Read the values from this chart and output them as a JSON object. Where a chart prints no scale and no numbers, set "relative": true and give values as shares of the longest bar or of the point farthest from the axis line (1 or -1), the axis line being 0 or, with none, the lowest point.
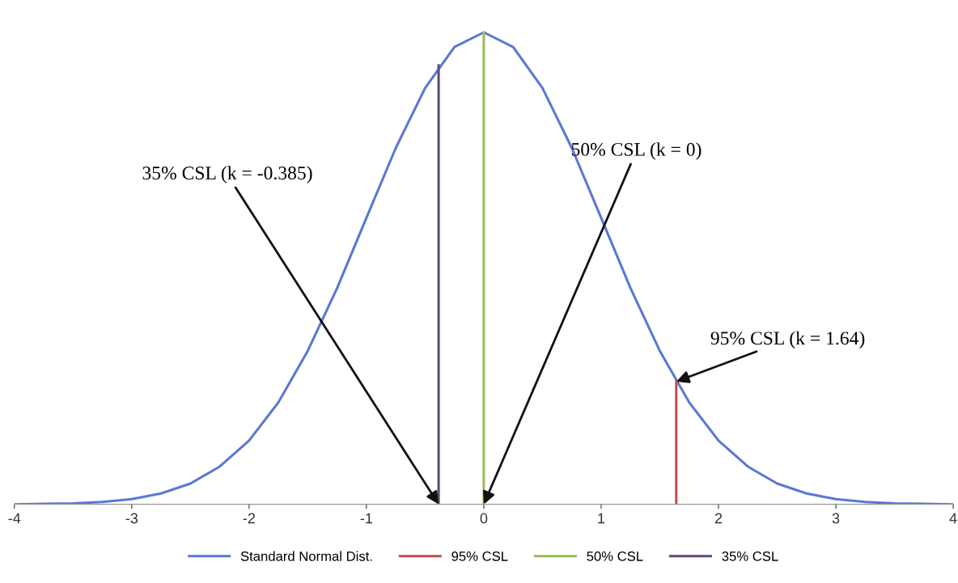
{
  "chart_data": {
    "type": "line",
    "relative": true,
    "xlim": [
      -4,
      4
    ],
    "xticks": [
      -4,
      -3,
      -2,
      -1,
      0,
      1,
      2,
      3,
      4
    ],
    "grid": false,
    "legend": "bottom",
    "marker": "none",
    "line_style": "solid",
    "series": [
      {
        "name": "Standard Normal Dist.",
        "color": "#5a78d2",
        "x": [
          -4,
          -3.75,
          -3.5,
          -3.25,
          -3,
          -2.75,
          -2.5,
          -2.25,
          -2,
          -1.75,
          -1.5,
          -1.25,
          -1,
          -0.75,
          -0.5,
          -0.25,
          0,
          0.25,
          0.5,
          0.75,
          1,
          1.25,
          1.5,
          1.75,
          2,
          2.25,
          2.5,
          2.75,
          3,
          3.25,
          3.5,
          3.75,
          4
        ],
        "values": [
          0.0,
          0.001,
          0.002,
          0.005,
          0.011,
          0.023,
          0.044,
          0.08,
          0.135,
          0.216,
          0.325,
          0.458,
          0.607,
          0.755,
          0.882,
          0.969,
          1.0,
          0.969,
          0.882,
          0.755,
          0.607,
          0.458,
          0.325,
          0.216,
          0.135,
          0.08,
          0.044,
          0.023,
          0.011,
          0.005,
          0.002,
          0.001,
          0.0
        ]
      },
      {
        "name": "95% CSL",
        "color": "#c0504d",
        "x": [
          1.64,
          1.64
        ],
        "values": [
          0,
          0.26
        ]
      },
      {
        "name": "50% CSL",
        "color": "#9bbb59",
        "x": [
          0,
          0
        ],
        "values": [
          0,
          1.0
        ]
      },
      {
        "name": "35% CSL",
        "color": "#604a7b",
        "x": [
          -0.385,
          -0.385
        ],
        "values": [
          0,
          0.93
        ]
      }
    ],
    "annotations": [
      {
        "text": "35% CSL (k = -0.385)",
        "x": -0.385,
        "y": 0
      },
      {
        "text": "50% CSL (k = 0)",
        "x": 0,
        "y": 0
      },
      {
        "text": "95% CSL (k = 1.64)",
        "x": 1.64,
        "y": 0.26
      }
    ]
  }
}
